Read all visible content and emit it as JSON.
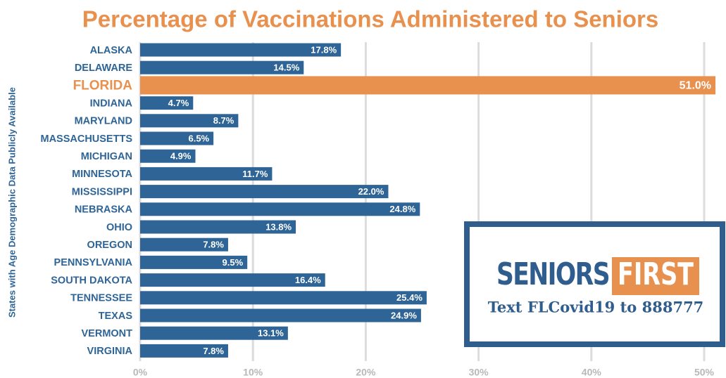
{
  "chart_data": {
    "type": "bar",
    "title": "Percentage of Vaccinations Administered to Seniors",
    "y_label": "States with Age Demographic Data Publicly Available",
    "categories": [
      "ALASKA",
      "DELAWARE",
      "FLORIDA",
      "INDIANA",
      "MARYLAND",
      "MASSACHUSETTS",
      "MICHIGAN",
      "MINNESOTA",
      "MISSISSIPPI",
      "NEBRASKA",
      "OHIO",
      "OREGON",
      "PENNSYLVANIA",
      "SOUTH DAKOTA",
      "TENNESSEE",
      "TEXAS",
      "VERMONT",
      "VIRGINIA"
    ],
    "values": [
      17.8,
      14.5,
      51.0,
      4.7,
      8.7,
      6.5,
      4.9,
      11.7,
      22.0,
      24.8,
      13.8,
      7.8,
      9.5,
      16.4,
      25.4,
      24.9,
      13.1,
      7.8
    ],
    "value_labels": [
      "17.8%",
      "14.5%",
      "51.0%",
      "4.7%",
      "8.7%",
      "6.5%",
      "4.9%",
      "11.7%",
      "22.0%",
      "24.8%",
      "13.8%",
      "7.8%",
      "9.5%",
      "16.4%",
      "25.4%",
      "24.9%",
      "13.1%",
      "7.8%"
    ],
    "colors": [
      "#2e6496",
      "#2e6496",
      "#e8914f",
      "#2e6496",
      "#2e6496",
      "#2e6496",
      "#2e6496",
      "#2e6496",
      "#2e6496",
      "#2e6496",
      "#2e6496",
      "#2e6496",
      "#2e6496",
      "#2e6496",
      "#2e6496",
      "#2e6496",
      "#2e6496",
      "#2e6496"
    ],
    "xlim": [
      0,
      50
    ],
    "xticks": [
      {
        "value": 0,
        "label": "0%"
      },
      {
        "value": 10,
        "label": "10%"
      },
      {
        "value": 20,
        "label": "20%"
      },
      {
        "value": 30,
        "label": "30%"
      },
      {
        "value": 40,
        "label": "40%"
      },
      {
        "value": 50,
        "label": "50%"
      }
    ],
    "grid": true
  },
  "logo": {
    "word1": "SENIORS",
    "word2": "FIRST",
    "tagline": "Text FLCovid19 to 888777"
  }
}
